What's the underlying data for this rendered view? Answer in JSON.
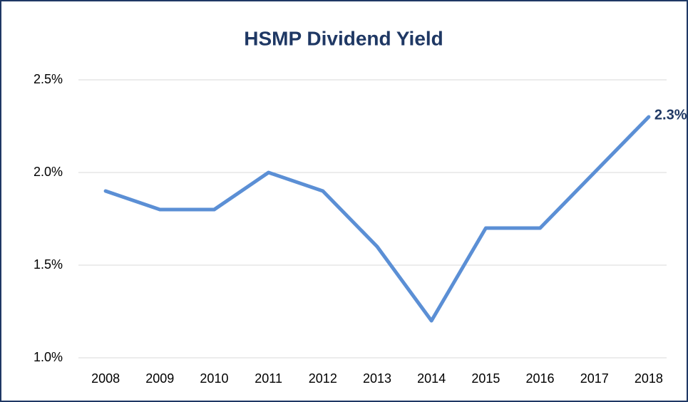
{
  "chart_data": {
    "type": "line",
    "title": "HSMP Dividend Yield",
    "categories": [
      "2008",
      "2009",
      "2010",
      "2011",
      "2012",
      "2013",
      "2014",
      "2015",
      "2016",
      "2017",
      "2018"
    ],
    "series": [
      {
        "name": "HSMP Dividend Yield",
        "color": "#5b8fd5",
        "values": [
          1.9,
          1.8,
          1.8,
          2.0,
          1.9,
          1.6,
          1.2,
          1.7,
          1.7,
          2.0,
          2.3
        ],
        "value_labels": [
          null,
          null,
          null,
          null,
          null,
          null,
          null,
          null,
          null,
          null,
          "2.3%"
        ]
      }
    ],
    "ylim": [
      1.0,
      2.5
    ],
    "yticks": [
      {
        "value": 1.0,
        "label": "1.0%"
      },
      {
        "value": 1.5,
        "label": "1.5%"
      },
      {
        "value": 2.0,
        "label": "2.0%"
      },
      {
        "value": 2.5,
        "label": "2.5%"
      }
    ],
    "grid": true
  }
}
